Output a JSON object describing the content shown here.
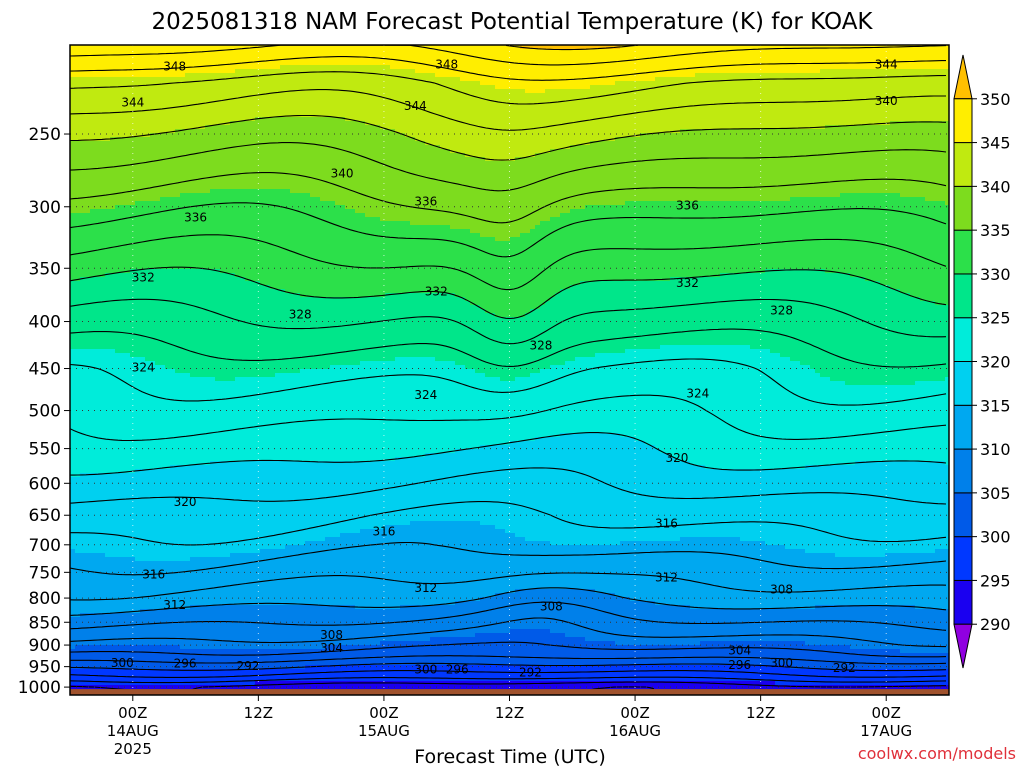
{
  "title": "2025081318 NAM Forecast Potential Temperature (K) for KOAK",
  "xlabel": "Forecast Time (UTC)",
  "credit": "coolwx.com/models",
  "colors": {
    "ground": "#a0522d",
    "frame": "#000000",
    "grid_dot": "#333333",
    "credit": "#e0303a"
  },
  "chart_data": {
    "type": "heatmap",
    "variable": "Potential Temperature (K)",
    "y_axis": {
      "scale": "log-pressure",
      "ticks": [
        250,
        300,
        350,
        400,
        450,
        500,
        550,
        600,
        650,
        700,
        750,
        800,
        850,
        900,
        950,
        1000
      ],
      "range_hPa": [
        200,
        1020
      ]
    },
    "x_axis": {
      "ticks": [
        {
          "label": "00Z",
          "sub": [
            "14AUG",
            "2025"
          ],
          "hour": 6
        },
        {
          "label": "12Z",
          "sub": [],
          "hour": 18
        },
        {
          "label": "00Z",
          "sub": [
            "15AUG"
          ],
          "hour": 30
        },
        {
          "label": "12Z",
          "sub": [],
          "hour": 42
        },
        {
          "label": "00Z",
          "sub": [
            "16AUG"
          ],
          "hour": 54
        },
        {
          "label": "12Z",
          "sub": [],
          "hour": 66
        },
        {
          "label": "00Z",
          "sub": [
            "17AUG"
          ],
          "hour": 78
        }
      ],
      "range_hours": [
        0,
        84
      ]
    },
    "ground_level_hPa": 1005,
    "colorbar": {
      "ticks": [
        290,
        295,
        300,
        305,
        310,
        315,
        320,
        325,
        330,
        335,
        340,
        345,
        350
      ],
      "colors": [
        "#5a00e6",
        "#1a00f0",
        "#0038ff",
        "#005ae8",
        "#0080ea",
        "#00a8f0",
        "#00d0f0",
        "#00ecda",
        "#00e68a",
        "#2ce04a",
        "#7ddc1e",
        "#c0ea10",
        "#ffee00",
        "#ffc000"
      ],
      "under_color": "#9000e0",
      "over_color": "#ffc000"
    },
    "theta_profile": [
      {
        "p": 1000,
        "theta": 293
      },
      {
        "p": 975,
        "theta": 297
      },
      {
        "p": 950,
        "theta": 300
      },
      {
        "p": 925,
        "theta": 303
      },
      {
        "p": 900,
        "theta": 305
      },
      {
        "p": 850,
        "theta": 308
      },
      {
        "p": 800,
        "theta": 311
      },
      {
        "p": 750,
        "theta": 313
      },
      {
        "p": 700,
        "theta": 315
      },
      {
        "p": 650,
        "theta": 316.5
      },
      {
        "p": 600,
        "theta": 318.5
      },
      {
        "p": 550,
        "theta": 320.5
      },
      {
        "p": 500,
        "theta": 322.5
      },
      {
        "p": 450,
        "theta": 324.5
      },
      {
        "p": 400,
        "theta": 327.5
      },
      {
        "p": 350,
        "theta": 331
      },
      {
        "p": 300,
        "theta": 335
      },
      {
        "p": 250,
        "theta": 340
      },
      {
        "p": 220,
        "theta": 344
      },
      {
        "p": 200,
        "theta": 349
      }
    ],
    "contours": {
      "interval": 2,
      "min": 290,
      "max": 352
    },
    "contour_labels": [
      {
        "value": "348",
        "hour": 10,
        "p": 211
      },
      {
        "value": "348",
        "hour": 36,
        "p": 210
      },
      {
        "value": "344",
        "hour": 78,
        "p": 210
      },
      {
        "value": "344",
        "hour": 6,
        "p": 231
      },
      {
        "value": "344",
        "hour": 33,
        "p": 233
      },
      {
        "value": "340",
        "hour": 78,
        "p": 230
      },
      {
        "value": "340",
        "hour": 26,
        "p": 276
      },
      {
        "value": "336",
        "hour": 12,
        "p": 308
      },
      {
        "value": "336",
        "hour": 34,
        "p": 296
      },
      {
        "value": "336",
        "hour": 59,
        "p": 299
      },
      {
        "value": "332",
        "hour": 7,
        "p": 358
      },
      {
        "value": "332",
        "hour": 35,
        "p": 371
      },
      {
        "value": "332",
        "hour": 59,
        "p": 363
      },
      {
        "value": "328",
        "hour": 22,
        "p": 393
      },
      {
        "value": "328",
        "hour": 45,
        "p": 425
      },
      {
        "value": "328",
        "hour": 68,
        "p": 389
      },
      {
        "value": "324",
        "hour": 7,
        "p": 449
      },
      {
        "value": "324",
        "hour": 34,
        "p": 481
      },
      {
        "value": "324",
        "hour": 60,
        "p": 479
      },
      {
        "value": "320",
        "hour": 58,
        "p": 563
      },
      {
        "value": "320",
        "hour": 11,
        "p": 629
      },
      {
        "value": "316",
        "hour": 30,
        "p": 677
      },
      {
        "value": "316",
        "hour": 57,
        "p": 664
      },
      {
        "value": "316",
        "hour": 8,
        "p": 754
      },
      {
        "value": "312",
        "hour": 34,
        "p": 780
      },
      {
        "value": "312",
        "hour": 57,
        "p": 760
      },
      {
        "value": "312",
        "hour": 10,
        "p": 814
      },
      {
        "value": "308",
        "hour": 68,
        "p": 783
      },
      {
        "value": "308",
        "hour": 46,
        "p": 817
      },
      {
        "value": "308",
        "hour": 25,
        "p": 878
      },
      {
        "value": "304",
        "hour": 25,
        "p": 907
      },
      {
        "value": "304",
        "hour": 64,
        "p": 912
      },
      {
        "value": "300",
        "hour": 5,
        "p": 941
      },
      {
        "value": "300",
        "hour": 34,
        "p": 957
      },
      {
        "value": "300",
        "hour": 68,
        "p": 941
      },
      {
        "value": "296",
        "hour": 11,
        "p": 942
      },
      {
        "value": "296",
        "hour": 37,
        "p": 957
      },
      {
        "value": "296",
        "hour": 64,
        "p": 946
      },
      {
        "value": "292",
        "hour": 17,
        "p": 948
      },
      {
        "value": "292",
        "hour": 44,
        "p": 964
      },
      {
        "value": "292",
        "hour": 74,
        "p": 953
      }
    ]
  }
}
